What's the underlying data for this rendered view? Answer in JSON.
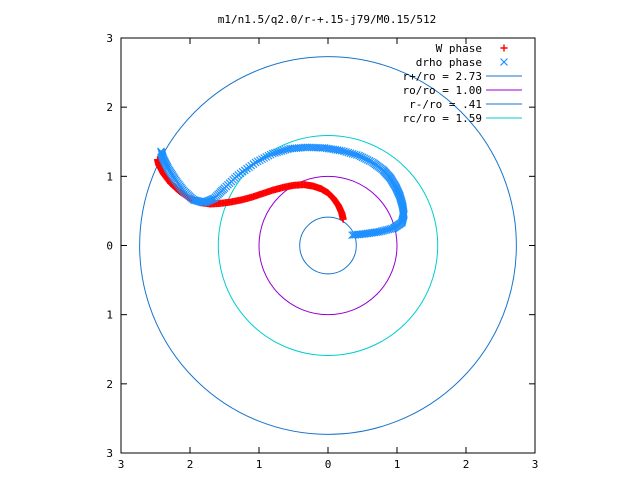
{
  "chart_data": {
    "type": "line",
    "title": "m1/n1.5/q2.0/r-+.15-j79/M0.15/512",
    "xlim": [
      -3,
      3
    ],
    "ylim": [
      -3,
      3
    ],
    "x_ticks": [
      -3,
      -2,
      -1,
      0,
      1,
      2,
      3
    ],
    "y_ticks": [
      -3,
      -2,
      -1,
      0,
      1,
      2,
      3
    ],
    "x_tick_labels": [
      "3",
      "2",
      "1",
      "0",
      "1",
      "2",
      "3"
    ],
    "y_tick_labels": [
      "3",
      "2",
      "1",
      "0",
      "1",
      "2",
      "3"
    ],
    "grid": false,
    "legend_position": "top-right",
    "series": [
      {
        "name": "W phase",
        "kind": "points",
        "marker": "+",
        "color": "#ff0000",
        "points": [
          [
            0.22,
            0.38
          ],
          [
            0.2,
            0.47
          ],
          [
            0.15,
            0.58
          ],
          [
            0.08,
            0.68
          ],
          [
            0.0,
            0.76
          ],
          [
            -0.1,
            0.82
          ],
          [
            -0.22,
            0.86
          ],
          [
            -0.35,
            0.88
          ],
          [
            -0.5,
            0.87
          ],
          [
            -0.65,
            0.84
          ],
          [
            -0.8,
            0.8
          ],
          [
            -0.95,
            0.75
          ],
          [
            -1.1,
            0.7
          ],
          [
            -1.25,
            0.66
          ],
          [
            -1.4,
            0.63
          ],
          [
            -1.55,
            0.61
          ],
          [
            -1.7,
            0.6
          ],
          [
            -1.85,
            0.62
          ],
          [
            -2.0,
            0.68
          ],
          [
            -2.15,
            0.78
          ],
          [
            -2.28,
            0.9
          ],
          [
            -2.38,
            1.03
          ],
          [
            -2.45,
            1.16
          ],
          [
            -2.47,
            1.24
          ]
        ]
      },
      {
        "name": "drho phase",
        "kind": "points",
        "marker": "x",
        "color": "#1e90ff",
        "points": [
          [
            0.35,
            0.15
          ],
          [
            0.55,
            0.17
          ],
          [
            0.75,
            0.2
          ],
          [
            0.95,
            0.25
          ],
          [
            1.07,
            0.33
          ],
          [
            1.1,
            0.45
          ],
          [
            1.08,
            0.58
          ],
          [
            1.04,
            0.72
          ],
          [
            0.98,
            0.85
          ],
          [
            0.9,
            0.98
          ],
          [
            0.8,
            1.09
          ],
          [
            0.65,
            1.2
          ],
          [
            0.45,
            1.3
          ],
          [
            0.2,
            1.37
          ],
          [
            -0.05,
            1.41
          ],
          [
            -0.3,
            1.42
          ],
          [
            -0.55,
            1.4
          ],
          [
            -0.8,
            1.33
          ],
          [
            -1.05,
            1.2
          ],
          [
            -1.3,
            1.02
          ],
          [
            -1.5,
            0.83
          ],
          [
            -1.65,
            0.68
          ],
          [
            -1.8,
            0.62
          ],
          [
            -1.95,
            0.66
          ],
          [
            -2.1,
            0.8
          ],
          [
            -2.22,
            0.96
          ],
          [
            -2.32,
            1.12
          ],
          [
            -2.39,
            1.26
          ],
          [
            -2.42,
            1.36
          ]
        ]
      },
      {
        "name": "r+/ro = 2.73",
        "kind": "circle",
        "r": 2.73,
        "color": "#1874cd"
      },
      {
        "name": "ro/ro = 1.00",
        "kind": "circle",
        "r": 1.0,
        "color": "#9400d3"
      },
      {
        "name": "r-/ro = .41",
        "kind": "circle",
        "r": 0.41,
        "color": "#1874cd"
      },
      {
        "name": "rc/ro = 1.59",
        "kind": "circle",
        "r": 1.59,
        "color": "#00ced1"
      }
    ]
  }
}
